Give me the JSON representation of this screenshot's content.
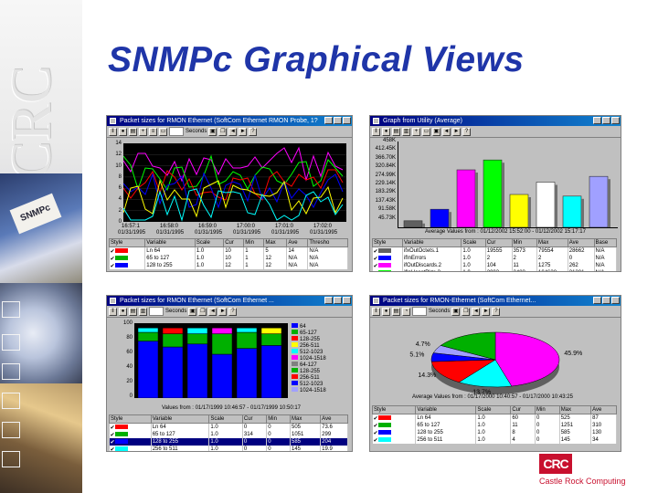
{
  "slide": {
    "title": "SNMPc Graphical Views",
    "logo_abbr": "CRC",
    "logo_text": "Castle Rock Computing"
  },
  "decor": {
    "emboss_letters": "CRC",
    "card_text": "SNMPc"
  },
  "colors": {
    "title": "#1f35a8",
    "brand_red": "#c8102e"
  },
  "win1": {
    "title": "Packet sizes for RMON Ethernet (SoftCom Ethernet RMON Probe, 1?",
    "toolbar_label": "Seconds",
    "y_ticks": [
      "14",
      "12",
      "10",
      "8",
      "6",
      "4",
      "2",
      "0"
    ],
    "x_ticks": [
      "16:57:1",
      "16:58:0",
      "16:59:0",
      "17:00:0",
      "17:01:0",
      "17:02:0"
    ],
    "x_dates": [
      "01/31/1995",
      "01/31/1995",
      "01/31/1995",
      "01/31/1995",
      "01/31/1995",
      "01/31/1995"
    ],
    "columns": [
      "Style",
      "Variable",
      "Scale",
      "Cur",
      "Min",
      "Max",
      "Ave",
      "Thresho"
    ],
    "rows": [
      {
        "color": "#ff0000",
        "variable": "Ln 64",
        "scale": "1.0",
        "cur": "10",
        "min": "1",
        "max": "5",
        "ave": "14",
        "thr": "N/A"
      },
      {
        "color": "#00b000",
        "variable": "65 to 127",
        "scale": "1.0",
        "cur": "10",
        "min": "1",
        "max": "12",
        "ave": "N/A",
        "thr": "N/A"
      },
      {
        "color": "#0000ff",
        "variable": "128 to 255",
        "scale": "1.0",
        "cur": "12",
        "min": "1",
        "max": "12",
        "ave": "N/A",
        "thr": "N/A"
      }
    ]
  },
  "win2": {
    "title": "Graph from Utility (Average)",
    "y_ticks": [
      "458K",
      "412.45K",
      "366.70K",
      "320.84K",
      "274.99K",
      "229.14K",
      "183.29K",
      "137.43K",
      "91.58K",
      "45.73K"
    ],
    "footer": "Average Values from : 01/12/2002 15:52:00 - 01/12/2002 15:17:17",
    "columns": [
      "Style",
      "Variable",
      "Scale",
      "Cur",
      "Min",
      "Max",
      "Ave",
      "Base"
    ],
    "bars": [
      {
        "color": "#606060",
        "value": 8
      },
      {
        "color": "#0000ff",
        "value": 22
      },
      {
        "color": "#ff00ff",
        "value": 70
      },
      {
        "color": "#00ff00",
        "value": 82
      },
      {
        "color": "#ffff00",
        "value": 40
      },
      {
        "color": "#ffffff",
        "value": 55
      },
      {
        "color": "#00ffff",
        "value": 38
      },
      {
        "color": "#a0a0ff",
        "value": 62
      }
    ],
    "rows": [
      {
        "color": "#606060",
        "variable": "ifxOutOctets.1",
        "scale": "1.0",
        "cur": "19555",
        "min": "3573",
        "max": "79554",
        "ave": "28662",
        "base": "N/A"
      },
      {
        "color": "#0000ff",
        "variable": "ifInErrors",
        "scale": "1.0",
        "cur": "2",
        "min": "2",
        "max": "2",
        "ave": "0",
        "base": "N/A"
      },
      {
        "color": "#ff00ff",
        "variable": "ifOutDiscards.2",
        "scale": "1.0",
        "cur": "104",
        "min": "11",
        "max": "1275",
        "ave": "262",
        "base": "N/A"
      },
      {
        "color": "#00ff00",
        "variable": "ifInUcastPkts.3",
        "scale": "1.0",
        "cur": "2003",
        "min": "2483",
        "max": "104638",
        "ave": "31201",
        "base": "N/A"
      },
      {
        "color": "#ffff00",
        "variable": "ifOutOctets.2",
        "scale": "1.0",
        "cur": "70",
        "min": "22",
        "max": "1902",
        "ave": "155",
        "base": "N/A",
        "selected": true
      },
      {
        "color": "#00ffff",
        "variable": "ifOutOctets.3",
        "scale": "1.0",
        "cur": "15936",
        "min": "11164",
        "max": "197406",
        "ave": "61597",
        "base": "N/A"
      }
    ]
  },
  "win3": {
    "title": "Packet sizes for RMON Ethernet (SoftCom Ethernet ...",
    "toolbar_label": "Seconds",
    "y_ticks": [
      "100",
      "80",
      "60",
      "40",
      "20",
      "0"
    ],
    "legend": [
      "64",
      "65-127",
      "128-255",
      "256-511",
      "512-1023",
      "1024-1518",
      "64-127",
      "128-255",
      "256-511",
      "512-1023",
      "1024-1518"
    ],
    "footer": "Values from : 01/17/1999 10:46:57 - 01/17/1999 10:50:17",
    "columns": [
      "Style",
      "Variable",
      "Scale",
      "Cur",
      "Min",
      "Max",
      "Ave"
    ],
    "rows": [
      {
        "color": "#ff0000",
        "variable": "Ln 64",
        "scale": "1.0",
        "cur": "0",
        "min": "0",
        "max": "505",
        "ave": "73.6"
      },
      {
        "color": "#00b000",
        "variable": "65 to 127",
        "scale": "1.0",
        "cur": "314",
        "min": "0",
        "max": "1051",
        "ave": "299"
      },
      {
        "color": "#0000ff",
        "variable": "128 to 255",
        "scale": "1.0",
        "cur": "0",
        "min": "0",
        "max": "585",
        "ave": "204",
        "selected": true
      },
      {
        "color": "#00ffff",
        "variable": "256 to 511",
        "scale": "1.0",
        "cur": "0",
        "min": "0",
        "max": "145",
        "ave": "19.9"
      }
    ]
  },
  "win4": {
    "title": "Packet sizes for RMON-Ethernet (SoftCom Ethernet...",
    "toolbar_label": "Seconds",
    "pie": [
      {
        "color": "#ff00ff",
        "value": 45.9,
        "label": "45.9%"
      },
      {
        "color": "#00ffff",
        "value": 13.7,
        "label": "13.7%"
      },
      {
        "color": "#ff0000",
        "value": 14.3,
        "label": "14.3%"
      },
      {
        "color": "#0000ff",
        "value": 5.1,
        "label": "5.1%"
      },
      {
        "color": "#a0a0ff",
        "value": 4.7,
        "label": "4.7%"
      },
      {
        "color": "#00b000",
        "value": 16.3,
        "label": ""
      }
    ],
    "footer": "Average Values from : 01/17/2000 10:40:57 - 01/17/2000 10:43:25",
    "columns": [
      "Style",
      "Variable",
      "Scale",
      "Cur",
      "Min",
      "Max",
      "Ave"
    ],
    "rows": [
      {
        "color": "#ff0000",
        "variable": "Ln 64",
        "scale": "1.0",
        "cur": "60",
        "min": "0",
        "max": "525",
        "ave": "87"
      },
      {
        "color": "#00b000",
        "variable": "65 to 127",
        "scale": "1.0",
        "cur": "11",
        "min": "0",
        "max": "1251",
        "ave": "310"
      },
      {
        "color": "#0000ff",
        "variable": "128 to 255",
        "scale": "1.0",
        "cur": "8",
        "min": "0",
        "max": "585",
        "ave": "130"
      },
      {
        "color": "#00ffff",
        "variable": "256 to 511",
        "scale": "1.0",
        "cur": "4",
        "min": "0",
        "max": "145",
        "ave": "34"
      }
    ]
  }
}
